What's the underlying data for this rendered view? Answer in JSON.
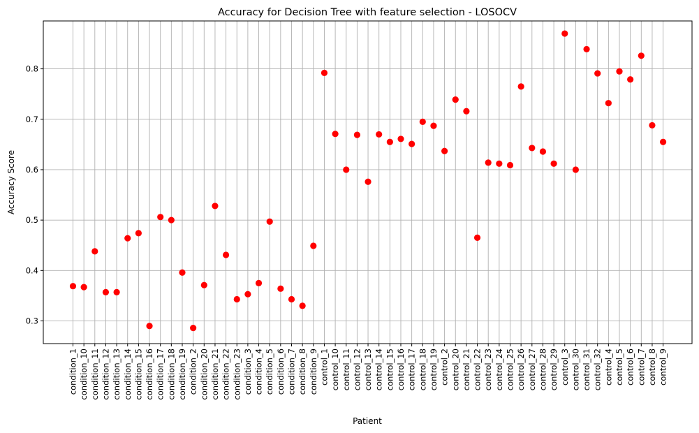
{
  "chart_data": {
    "type": "scatter",
    "title": "Accuracy for Decision Tree with feature selection - LOSOCV",
    "xlabel": "Patient",
    "ylabel": "Accuracy Score",
    "ylim": [
      0.255,
      0.895
    ],
    "yticks": [
      0.3,
      0.4,
      0.5,
      0.6,
      0.7,
      0.8
    ],
    "grid": true,
    "marker_color": "#ff0000",
    "categories": [
      "condition_1",
      "condition_10",
      "condition_11",
      "condition_12",
      "condition_13",
      "condition_14",
      "condition_15",
      "condition_16",
      "condition_17",
      "condition_18",
      "condition_19",
      "condition_2",
      "condition_20",
      "condition_21",
      "condition_22",
      "condition_23",
      "condition_3",
      "condition_4",
      "condition_5",
      "condition_6",
      "condition_7",
      "condition_8",
      "condition_9",
      "control_1",
      "control_10",
      "control_11",
      "control_12",
      "control_13",
      "control_14",
      "control_15",
      "control_16",
      "control_17",
      "control_18",
      "control_19",
      "control_2",
      "control_20",
      "control_21",
      "control_22",
      "control_23",
      "control_24",
      "control_25",
      "control_26",
      "control_27",
      "control_28",
      "control_29",
      "control_3",
      "control_30",
      "control_31",
      "control_32",
      "control_4",
      "control_5",
      "control_6",
      "control_7",
      "control_8",
      "control_9"
    ],
    "values": [
      0.369,
      0.367,
      0.438,
      0.357,
      0.357,
      0.464,
      0.474,
      0.29,
      0.506,
      0.5,
      0.396,
      0.286,
      0.371,
      0.528,
      0.431,
      0.343,
      0.353,
      0.375,
      0.497,
      0.364,
      0.343,
      0.33,
      0.449,
      0.792,
      0.671,
      0.6,
      0.669,
      0.576,
      0.67,
      0.655,
      0.661,
      0.651,
      0.695,
      0.687,
      0.637,
      0.739,
      0.716,
      0.465,
      0.614,
      0.612,
      0.609,
      0.765,
      0.643,
      0.636,
      0.612,
      0.87,
      0.6,
      0.839,
      0.791,
      0.732,
      0.795,
      0.779,
      0.826,
      0.688,
      0.655
    ]
  }
}
